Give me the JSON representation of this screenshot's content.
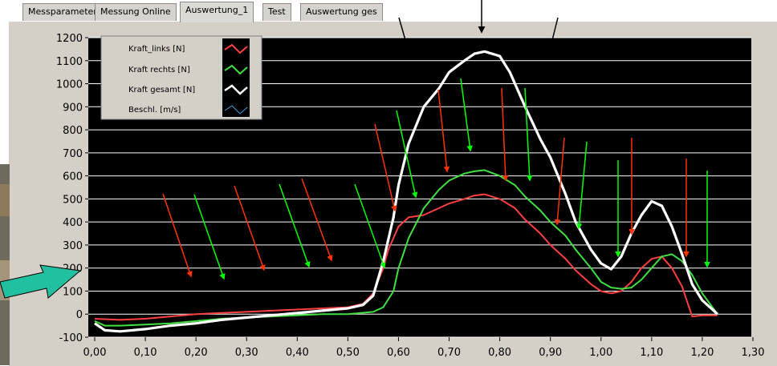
{
  "tabs": [
    {
      "label": "Messparameter",
      "active": false
    },
    {
      "label": "Messung Online",
      "active": false
    },
    {
      "label": "Auswertung_1",
      "active": true
    },
    {
      "label": "Test",
      "active": false
    },
    {
      "label": "Auswertung ges",
      "active": false
    }
  ],
  "colors": {
    "plot_background": "#000000",
    "grid": "#ffffff",
    "frame": "#d4d0c8",
    "red_arrow": "#ff3300",
    "green_arrow": "#00ff00",
    "teal_arrow": "#20c0a0"
  },
  "chart_data": {
    "type": "line",
    "title": "",
    "xlabel": "",
    "ylabel": "",
    "xlim": [
      0,
      1.3
    ],
    "ylim": [
      -100,
      1200
    ],
    "x_ticks": [
      "0,00",
      "0,10",
      "0,20",
      "0,30",
      "0,40",
      "0,50",
      "0,60",
      "0,70",
      "0,80",
      "0,90",
      "1,00",
      "1,10",
      "1,20",
      "1,30"
    ],
    "y_ticks": [
      "-100",
      "0",
      "100",
      "200",
      "300",
      "400",
      "500",
      "600",
      "700",
      "800",
      "900",
      "1000",
      "1100",
      "1200"
    ],
    "grid": "horizontal",
    "legend_position": "top-left",
    "series": [
      {
        "name": "Kraft_links [N]",
        "color": "#ff4040",
        "x": [
          0,
          0.05,
          0.1,
          0.15,
          0.2,
          0.25,
          0.3,
          0.35,
          0.4,
          0.45,
          0.5,
          0.53,
          0.55,
          0.57,
          0.58,
          0.6,
          0.62,
          0.65,
          0.68,
          0.7,
          0.73,
          0.75,
          0.77,
          0.8,
          0.83,
          0.85,
          0.88,
          0.9,
          0.93,
          0.95,
          0.98,
          1.0,
          1.02,
          1.04,
          1.06,
          1.08,
          1.1,
          1.12,
          1.14,
          1.16,
          1.18,
          1.2,
          1.23
        ],
        "y": [
          -20,
          -25,
          -20,
          -10,
          0,
          5,
          10,
          15,
          20,
          25,
          30,
          45,
          90,
          200,
          280,
          380,
          420,
          430,
          460,
          480,
          500,
          515,
          520,
          500,
          460,
          410,
          350,
          300,
          240,
          190,
          130,
          100,
          90,
          100,
          140,
          200,
          240,
          250,
          200,
          120,
          -10,
          -5,
          -5
        ]
      },
      {
        "name": "Kraft rechts [N]",
        "color": "#40e040",
        "x": [
          0,
          0.02,
          0.05,
          0.1,
          0.15,
          0.2,
          0.25,
          0.3,
          0.35,
          0.4,
          0.45,
          0.5,
          0.55,
          0.57,
          0.59,
          0.6,
          0.62,
          0.65,
          0.68,
          0.7,
          0.73,
          0.75,
          0.77,
          0.8,
          0.83,
          0.85,
          0.88,
          0.9,
          0.93,
          0.95,
          0.98,
          1.0,
          1.02,
          1.04,
          1.06,
          1.08,
          1.1,
          1.12,
          1.14,
          1.16,
          1.18,
          1.2,
          1.23
        ],
        "y": [
          -30,
          -50,
          -50,
          -45,
          -40,
          -30,
          -20,
          -15,
          -10,
          -5,
          0,
          0,
          10,
          30,
          100,
          200,
          330,
          460,
          540,
          580,
          610,
          620,
          625,
          600,
          560,
          510,
          450,
          400,
          340,
          280,
          200,
          140,
          115,
          110,
          115,
          150,
          200,
          250,
          260,
          230,
          170,
          90,
          0
        ]
      },
      {
        "name": "Kraft gesamt [N]",
        "color": "#ffffff",
        "x": [
          0,
          0.02,
          0.05,
          0.1,
          0.15,
          0.2,
          0.25,
          0.3,
          0.35,
          0.4,
          0.45,
          0.5,
          0.53,
          0.55,
          0.57,
          0.59,
          0.6,
          0.62,
          0.65,
          0.68,
          0.7,
          0.73,
          0.75,
          0.77,
          0.8,
          0.82,
          0.85,
          0.88,
          0.9,
          0.93,
          0.95,
          0.98,
          1.0,
          1.02,
          1.04,
          1.06,
          1.08,
          1.1,
          1.12,
          1.14,
          1.16,
          1.18,
          1.2,
          1.23
        ],
        "y": [
          -40,
          -70,
          -75,
          -65,
          -50,
          -40,
          -25,
          -15,
          -5,
          5,
          15,
          25,
          40,
          80,
          230,
          420,
          560,
          740,
          900,
          980,
          1050,
          1100,
          1130,
          1140,
          1120,
          1050,
          900,
          760,
          680,
          520,
          400,
          280,
          220,
          195,
          250,
          350,
          430,
          490,
          470,
          380,
          260,
          130,
          60,
          0
        ]
      },
      {
        "name": "Beschl. [m/s]",
        "color": "#40a0e0",
        "x": [],
        "y": []
      }
    ]
  }
}
